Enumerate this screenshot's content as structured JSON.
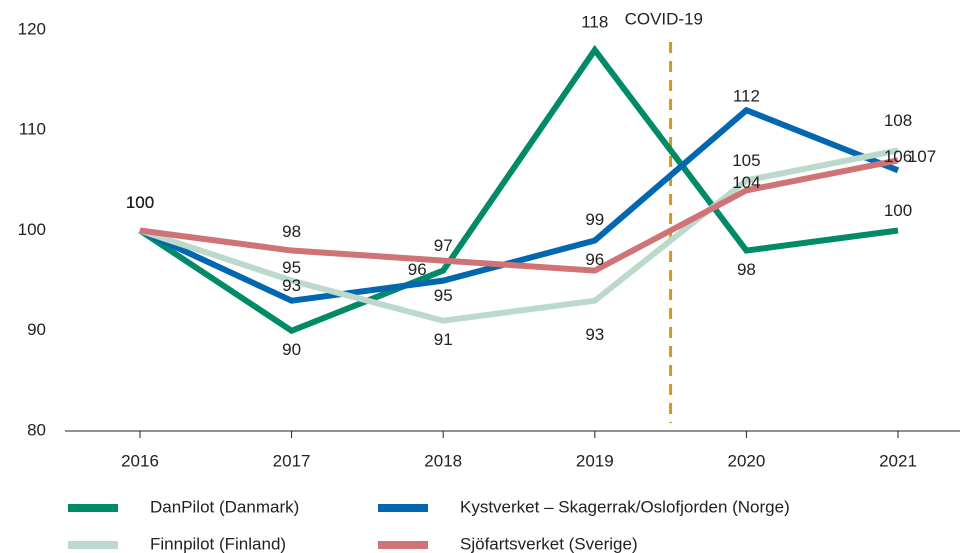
{
  "chart_data": {
    "type": "line",
    "categories": [
      "2016",
      "2017",
      "2018",
      "2019",
      "2020",
      "2021"
    ],
    "series": [
      {
        "name": "DanPilot (Danmark)",
        "color": "#008a67",
        "values": [
          100,
          90,
          96,
          118,
          98,
          100
        ]
      },
      {
        "name": "Kystverket – Skagerrak/Oslofjorden (Norge)",
        "color": "#0067b0",
        "values": [
          100,
          93,
          95,
          99,
          112,
          106
        ]
      },
      {
        "name": "Finnpilot (Finland)",
        "color": "#bcd9cc",
        "values": [
          100,
          95,
          91,
          93,
          105,
          108
        ]
      },
      {
        "name": "Sjöfartsverket (Sverige)",
        "color": "#d07376",
        "values": [
          100,
          98,
          97,
          96,
          104,
          107
        ]
      }
    ],
    "ylim": [
      80,
      120
    ],
    "yticks": [
      80,
      90,
      100,
      110,
      120
    ],
    "grid": false,
    "annotations": [
      {
        "text": "COVID-19",
        "x": 3.5,
        "color": "#d4981c"
      }
    ]
  }
}
